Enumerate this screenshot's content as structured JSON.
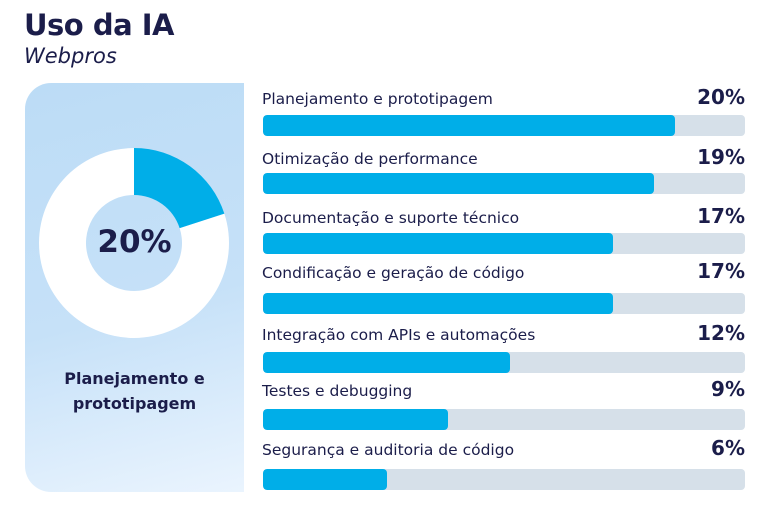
{
  "chart_data": [
    {
      "type": "pie",
      "variant": "donut",
      "center_value": "20%",
      "highlight_label": "Planejamento e prototipagem",
      "value": 20,
      "colors": {
        "highlight": "#00aee8",
        "rest": "#ffffff"
      }
    },
    {
      "type": "bar",
      "orientation": "horizontal",
      "title": "Uso da IA",
      "subtitle": "Webpros",
      "categories": [
        "Planejamento e prototipagem",
        "Otimização de performance",
        "Documentação e suporte técnico",
        "Condificação e geração de código",
        "Integração com APIs e automações",
        "Testes e debugging",
        "Segurança e auditoria de código"
      ],
      "values": [
        20,
        19,
        17,
        17,
        12,
        9,
        6
      ],
      "labels": [
        "20%",
        "19%",
        "17%",
        "17%",
        "12%",
        "9%",
        "6%"
      ],
      "colors": {
        "bar": "#00aee8",
        "track": "#d6e0e9"
      }
    }
  ]
}
